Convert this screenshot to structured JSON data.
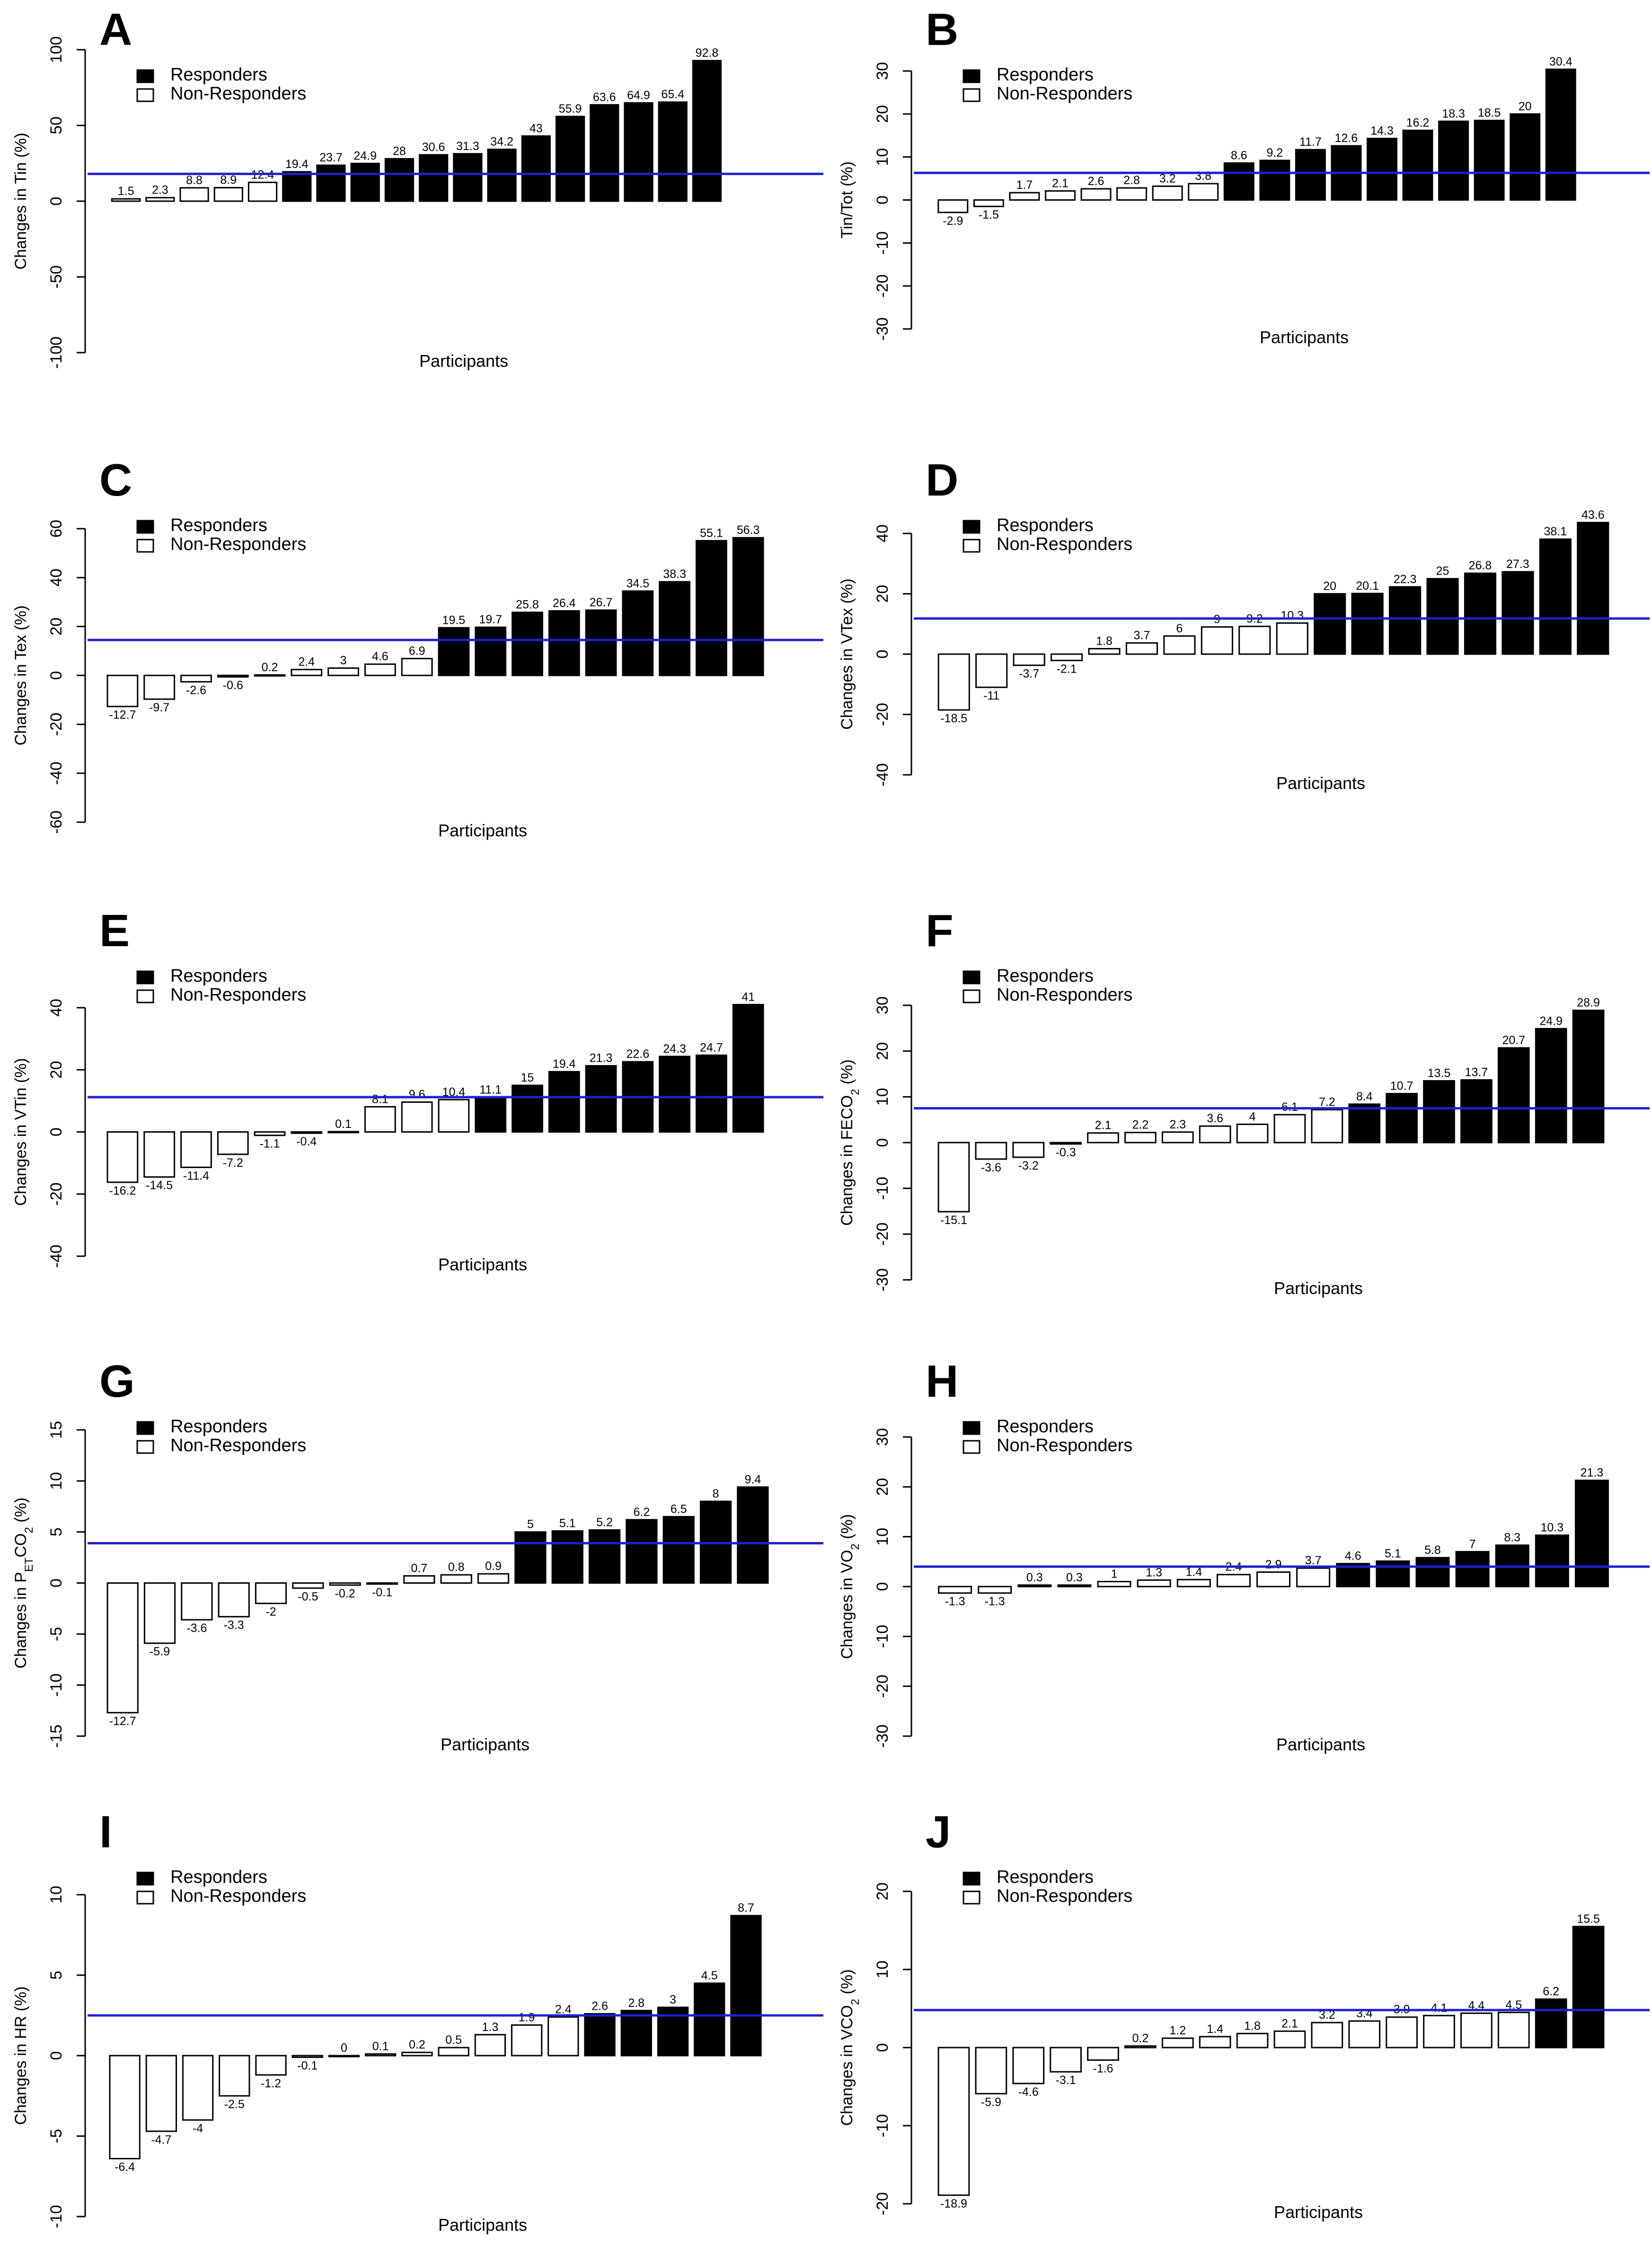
{
  "figure": {
    "legend": {
      "responders": "Responders",
      "non_responders": "Non-Responders"
    }
  },
  "colors": {
    "responder_fill": "#000000",
    "non_responder_fill": "#ffffff",
    "bar_stroke": "#000000",
    "threshold_line": "#1f1fd1"
  },
  "chart_data": [
    {
      "panel": "A",
      "type": "bar",
      "title": "A",
      "ylabel": "Changes in Tin (%)",
      "xlabel": "Participants",
      "ylim": [
        -100,
        100
      ],
      "yticks": [
        -100,
        -50,
        0,
        50,
        100
      ],
      "threshold": 18,
      "values": [
        1.5,
        2.3,
        8.8,
        8.9,
        12.4,
        19.4,
        23.7,
        24.9,
        28,
        30.6,
        31.3,
        34.2,
        43,
        55.9,
        63.6,
        64.9,
        65.4,
        92.8
      ],
      "labels": [
        "1.5",
        "2.3",
        "8.8",
        "8.9",
        "12.4",
        "19.4",
        "23.7",
        "24.9",
        "28",
        "30.6",
        "31.3",
        "34.2",
        "43",
        "55.9",
        "63.6",
        "64.9",
        "65.4",
        "92.8"
      ],
      "responder": [
        false,
        false,
        false,
        false,
        false,
        true,
        true,
        true,
        true,
        true,
        true,
        true,
        true,
        true,
        true,
        true,
        true,
        true
      ]
    },
    {
      "panel": "B",
      "type": "bar",
      "title": "B",
      "ylabel": "Tin/Tot (%)",
      "xlabel": "Participants",
      "ylim": [
        -30,
        30
      ],
      "yticks": [
        -30,
        -20,
        -10,
        0,
        10,
        20,
        30
      ],
      "threshold": 6.3,
      "values": [
        -2.9,
        -1.5,
        1.7,
        2.1,
        2.6,
        2.8,
        3.2,
        3.8,
        8.6,
        9.2,
        11.7,
        12.6,
        14.3,
        16.2,
        18.3,
        18.5,
        20,
        30.4
      ],
      "labels": [
        "-2.9",
        "-1.5",
        "1.7",
        "2.1",
        "2.6",
        "2.8",
        "3.2",
        "3.8",
        "8.6",
        "9.2",
        "11.7",
        "12.6",
        "14.3",
        "16.2",
        "18.3",
        "18.5",
        "20",
        "30.4"
      ],
      "responder": [
        false,
        false,
        false,
        false,
        false,
        false,
        false,
        false,
        true,
        true,
        true,
        true,
        true,
        true,
        true,
        true,
        true,
        true
      ]
    },
    {
      "panel": "C",
      "type": "bar",
      "title": "C",
      "ylabel": "Changes in Tex (%)",
      "xlabel": "Participants",
      "ylim": [
        -60,
        60
      ],
      "yticks": [
        -60,
        -40,
        -20,
        0,
        20,
        40,
        60
      ],
      "threshold": 14.5,
      "values": [
        -12.7,
        -9.7,
        -2.6,
        -0.6,
        0.2,
        2.4,
        3,
        4.6,
        6.9,
        19.5,
        19.7,
        25.8,
        26.4,
        26.7,
        34.5,
        38.3,
        55.1,
        56.3
      ],
      "labels": [
        "-12.7",
        "-9.7",
        "-2.6",
        "-0.6",
        "0.2",
        "2.4",
        "3",
        "4.6",
        "6.9",
        "19.5",
        "19.7",
        "25.8",
        "26.4",
        "26.7",
        "34.5",
        "38.3",
        "55.1",
        "56.3"
      ],
      "responder": [
        false,
        false,
        false,
        false,
        false,
        false,
        false,
        false,
        false,
        true,
        true,
        true,
        true,
        true,
        true,
        true,
        true,
        true
      ]
    },
    {
      "panel": "D",
      "type": "bar",
      "title": "D",
      "ylabel": "Changes in VTex (%)",
      "xlabel": "Participants",
      "ylim": [
        -40,
        40
      ],
      "yticks": [
        -40,
        -20,
        0,
        20,
        40
      ],
      "threshold": 11.8,
      "values": [
        -18.5,
        -11,
        -3.7,
        -2.1,
        1.8,
        3.7,
        6,
        9,
        9.2,
        10.3,
        20,
        20.1,
        22.3,
        25,
        26.8,
        27.3,
        38.1,
        43.6
      ],
      "labels": [
        "-18.5",
        "-11",
        "-3.7",
        "-2.1",
        "1.8",
        "3.7",
        "6",
        "9",
        "9.2",
        "10.3",
        "20",
        "20.1",
        "22.3",
        "25",
        "26.8",
        "27.3",
        "38.1",
        "43.6"
      ],
      "responder": [
        false,
        false,
        false,
        false,
        false,
        false,
        false,
        false,
        false,
        false,
        true,
        true,
        true,
        true,
        true,
        true,
        true,
        true
      ]
    },
    {
      "panel": "E",
      "type": "bar",
      "title": "E",
      "ylabel": "Changes in VTin (%)",
      "xlabel": "Participants",
      "ylim": [
        -40,
        40
      ],
      "yticks": [
        -40,
        -20,
        0,
        20,
        40
      ],
      "threshold": 11.2,
      "values": [
        -16.2,
        -14.5,
        -11.4,
        -7.2,
        -1.1,
        -0.4,
        0.1,
        8.1,
        9.6,
        10.4,
        11.1,
        15,
        19.4,
        21.3,
        22.6,
        24.3,
        24.7,
        41
      ],
      "labels": [
        "-16.2",
        "-14.5",
        "-11.4",
        "-7.2",
        "-1.1",
        "-0.4",
        "0.1",
        "8.1",
        "9.6",
        "10.4",
        "11.1",
        "15",
        "19.4",
        "21.3",
        "22.6",
        "24.3",
        "24.7",
        "41"
      ],
      "responder": [
        false,
        false,
        false,
        false,
        false,
        false,
        false,
        false,
        false,
        false,
        true,
        true,
        true,
        true,
        true,
        true,
        true,
        true
      ]
    },
    {
      "panel": "F",
      "type": "bar",
      "title": "F",
      "ylabel": "Changes in FECO",
      "ylabel_sub": "2",
      "ylabel_end": " (%)",
      "xlabel": "Participants",
      "ylim": [
        -30,
        30
      ],
      "yticks": [
        -30,
        -20,
        -10,
        0,
        10,
        20,
        30
      ],
      "threshold": 7.5,
      "values": [
        -15.1,
        -3.6,
        -3.2,
        -0.3,
        2.1,
        2.2,
        2.3,
        3.6,
        4,
        6.1,
        7.2,
        8.4,
        10.7,
        13.5,
        13.7,
        20.7,
        24.9,
        28.9
      ],
      "labels": [
        "-15.1",
        "-3.6",
        "-3.2",
        "-0.3",
        "2.1",
        "2.2",
        "2.3",
        "3.6",
        "4",
        "6.1",
        "7.2",
        "8.4",
        "10.7",
        "13.5",
        "13.7",
        "20.7",
        "24.9",
        "28.9"
      ],
      "responder": [
        false,
        false,
        false,
        false,
        false,
        false,
        false,
        false,
        false,
        false,
        false,
        true,
        true,
        true,
        true,
        true,
        true,
        true
      ]
    },
    {
      "panel": "G",
      "type": "bar",
      "title": "G",
      "ylabel": "Changes in P",
      "ylabel_sub": "ET",
      "ylabel_mid": "CO",
      "ylabel_sub2": "2",
      "ylabel_end": " (%)",
      "xlabel": "Participants",
      "ylim": [
        -15,
        15
      ],
      "yticks": [
        -15,
        -10,
        -5,
        0,
        5,
        10,
        15
      ],
      "threshold": 3.9,
      "values": [
        -12.7,
        -5.9,
        -3.6,
        -3.3,
        -2,
        -0.5,
        -0.2,
        -0.1,
        0.7,
        0.8,
        0.9,
        5,
        5.1,
        5.2,
        6.2,
        6.5,
        8,
        9.4
      ],
      "labels": [
        "-12.7",
        "-5.9",
        "-3.6",
        "-3.3",
        "-2",
        "-0.5",
        "-0.2",
        "-0.1",
        "0.7",
        "0.8",
        "0.9",
        "5",
        "5.1",
        "5.2",
        "6.2",
        "6.5",
        "8",
        "9.4"
      ],
      "responder": [
        false,
        false,
        false,
        false,
        false,
        false,
        false,
        false,
        false,
        false,
        false,
        true,
        true,
        true,
        true,
        true,
        true,
        true
      ]
    },
    {
      "panel": "H",
      "type": "bar",
      "title": "H",
      "ylabel": "Changes in VO",
      "ylabel_sub": "2",
      "ylabel_end": " (%)",
      "xlabel": "Participants",
      "ylim": [
        -30,
        30
      ],
      "yticks": [
        -30,
        -20,
        -10,
        0,
        10,
        20,
        30
      ],
      "threshold": 4,
      "values": [
        -1.3,
        -1.3,
        0.3,
        0.3,
        1,
        1.3,
        1.4,
        2.4,
        2.9,
        3.7,
        4.6,
        5.1,
        5.8,
        7,
        8.3,
        10.3,
        21.3
      ],
      "labels": [
        "-1.3",
        "-1.3",
        "0.3",
        "0.3",
        "1",
        "1.3",
        "1.4",
        "2.4",
        "2.9",
        "3.7",
        "4.6",
        "5.1",
        "5.8",
        "7",
        "8.3",
        "10.3",
        "21.3"
      ],
      "responder": [
        false,
        false,
        false,
        false,
        false,
        false,
        false,
        false,
        false,
        false,
        true,
        true,
        true,
        true,
        true,
        true,
        true
      ]
    },
    {
      "panel": "I",
      "type": "bar",
      "title": "I",
      "ylabel": "Changes in HR (%)",
      "xlabel": "Participants",
      "ylim": [
        -10,
        10
      ],
      "yticks": [
        -10,
        -5,
        0,
        5,
        10
      ],
      "threshold": 2.5,
      "values": [
        -6.4,
        -4.7,
        -4,
        -2.5,
        -1.2,
        -0.1,
        0,
        0.1,
        0.2,
        0.5,
        1.3,
        1.9,
        2.4,
        2.6,
        2.8,
        3,
        4.5,
        8.7
      ],
      "labels": [
        "-6.4",
        "-4.7",
        "-4",
        "-2.5",
        "-1.2",
        "-0.1",
        "0",
        "0.1",
        "0.2",
        "0.5",
        "1.3",
        "1.9",
        "2.4",
        "2.6",
        "2.8",
        "3",
        "4.5",
        "8.7"
      ],
      "responder": [
        false,
        false,
        false,
        false,
        false,
        false,
        false,
        false,
        false,
        false,
        false,
        false,
        false,
        true,
        true,
        true,
        true,
        true
      ]
    },
    {
      "panel": "J",
      "type": "bar",
      "title": "J",
      "ylabel": "Changes in VCO",
      "ylabel_sub": "2",
      "ylabel_end": " (%)",
      "xlabel": "Participants",
      "ylim": [
        -20,
        20
      ],
      "yticks": [
        -20,
        -10,
        0,
        10,
        20
      ],
      "threshold": 4.8,
      "values": [
        -18.9,
        -5.9,
        -4.6,
        -3.1,
        -1.6,
        0.2,
        1.2,
        1.4,
        1.8,
        2.1,
        3.2,
        3.4,
        3.9,
        4.1,
        4.4,
        4.5,
        6.2,
        15.5
      ],
      "labels": [
        "-18.9",
        "-5.9",
        "-4.6",
        "-3.1",
        "-1.6",
        "0.2",
        "1.2",
        "1.4",
        "1.8",
        "2.1",
        "3.2",
        "3.4",
        "3.9",
        "4.1",
        "4.4",
        "4.5",
        "6.2",
        "15.5"
      ],
      "responder": [
        false,
        false,
        false,
        false,
        false,
        false,
        false,
        false,
        false,
        false,
        false,
        false,
        false,
        false,
        false,
        false,
        true,
        true
      ]
    }
  ]
}
